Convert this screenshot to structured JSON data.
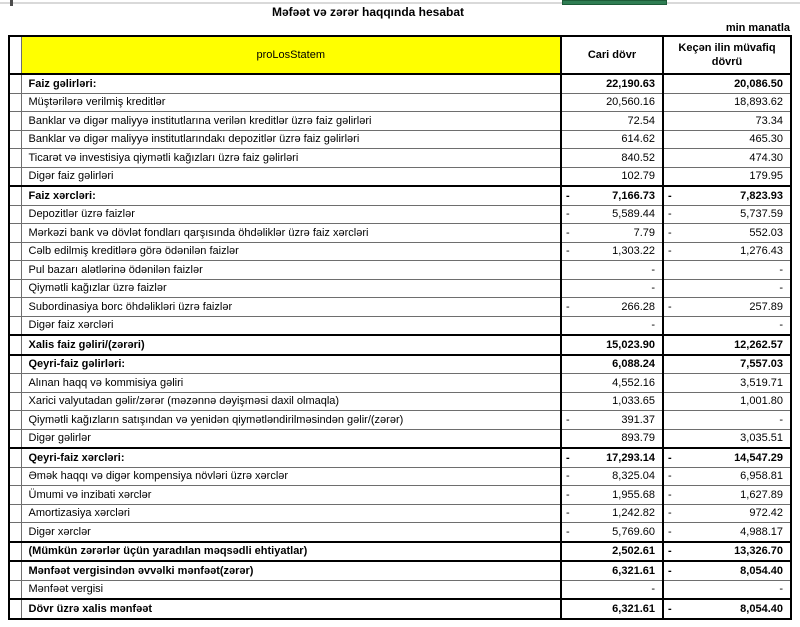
{
  "page": {
    "title": "Məfəət və zərər haqqında hesabat",
    "unit_note": "min manatla"
  },
  "colors": {
    "header_highlight": "#ffff00",
    "top_accent_green": "#2f7d53"
  },
  "table": {
    "header": {
      "name_col": "proLosStatem",
      "col1": "Cari dövr",
      "col2": "Keçən ilin müvafiq dövrü"
    },
    "rows": [
      {
        "label": "Faiz gəlirləri:",
        "bold": true,
        "v1": "22,190.63",
        "n1": false,
        "v2": "20,086.50",
        "n2": false
      },
      {
        "label": "Müştərilərə verilmiş kreditlər",
        "bold": false,
        "v1": "20,560.16",
        "n1": false,
        "v2": "18,893.62",
        "n2": false
      },
      {
        "label": "Banklar və digər maliyyə institutlarına verilən kreditlər üzrə faiz gəlirləri",
        "bold": false,
        "v1": "72.54",
        "n1": false,
        "v2": "73.34",
        "n2": false
      },
      {
        "label": "Banklar və digər maliyyə institutlarındakı depozitlər üzrə faiz gəlirləri",
        "bold": false,
        "v1": "614.62",
        "n1": false,
        "v2": "465.30",
        "n2": false
      },
      {
        "label": "Ticarət və investisiya qiymətli kağızları üzrə faiz gəlirləri",
        "bold": false,
        "v1": "840.52",
        "n1": false,
        "v2": "474.30",
        "n2": false
      },
      {
        "label": "Digər faiz gəlirləri",
        "bold": false,
        "v1": "102.79",
        "n1": false,
        "v2": "179.95",
        "n2": false
      },
      {
        "label": "Faiz xərcləri:",
        "bold": true,
        "v1": "7,166.73",
        "n1": true,
        "v2": "7,823.93",
        "n2": true
      },
      {
        "label": "Depozitlər üzrə faizlər",
        "bold": false,
        "v1": "5,589.44",
        "n1": true,
        "v2": "5,737.59",
        "n2": true
      },
      {
        "label": "Mərkəzi bank və dövlət fondları qarşısında öhdəliklər üzrə faiz xərcləri",
        "bold": false,
        "v1": "7.79",
        "n1": true,
        "v2": "552.03",
        "n2": true
      },
      {
        "label": "Cəlb edilmiş kreditlərə görə ödənilən faizlər",
        "bold": false,
        "v1": "1,303.22",
        "n1": true,
        "v2": "1,276.43",
        "n2": true
      },
      {
        "label": "Pul bazarı alətlərinə ödənilən faizlər",
        "bold": false,
        "v1": "-",
        "n1": false,
        "v2": "-",
        "n2": false
      },
      {
        "label": "Qiymətli kağızlar üzrə faizlər",
        "bold": false,
        "v1": "-",
        "n1": false,
        "v2": "-",
        "n2": false
      },
      {
        "label": "Subordinasiya borc öhdəlikləri üzrə faizlər",
        "bold": false,
        "v1": "266.28",
        "n1": true,
        "v2": "257.89",
        "n2": true
      },
      {
        "label": "Digər faiz xərcləri",
        "bold": false,
        "v1": "-",
        "n1": false,
        "v2": "-",
        "n2": false
      },
      {
        "label": "Xalis faiz gəliri/(zərəri)",
        "bold": true,
        "v1": "15,023.90",
        "n1": false,
        "v2": "12,262.57",
        "n2": false
      },
      {
        "label": "Qeyri-faiz gəlirləri:",
        "bold": true,
        "v1": "6,088.24",
        "n1": false,
        "v2": "7,557.03",
        "n2": false
      },
      {
        "label": "Alınan haqq və kommisiya gəliri",
        "bold": false,
        "v1": "4,552.16",
        "n1": false,
        "v2": "3,519.71",
        "n2": false
      },
      {
        "label": "Xarici valyutadan gəlir/zərər (məzənnə dəyişməsi daxil olmaqla)",
        "bold": false,
        "v1": "1,033.65",
        "n1": false,
        "v2": "1,001.80",
        "n2": false
      },
      {
        "label": "Qiymətli kağızların satışından və yenidən qiymətləndirilməsindən gəlir/(zərər)",
        "bold": false,
        "v1": "391.37",
        "n1": true,
        "v2": "-",
        "n2": false
      },
      {
        "label": "Digər gəlirlər",
        "bold": false,
        "v1": "893.79",
        "n1": false,
        "v2": "3,035.51",
        "n2": false
      },
      {
        "label": "Qeyri-faiz xərcləri:",
        "bold": true,
        "v1": "17,293.14",
        "n1": true,
        "v2": "14,547.29",
        "n2": true
      },
      {
        "label": "Əmək haqqı və digər kompensiya növləri üzrə xərclər",
        "bold": false,
        "v1": "8,325.04",
        "n1": true,
        "v2": "6,958.81",
        "n2": true
      },
      {
        "label": "Ümumi və inzibati xərclər",
        "bold": false,
        "v1": "1,955.68",
        "n1": true,
        "v2": "1,627.89",
        "n2": true
      },
      {
        "label": "Amortizasiya xərcləri",
        "bold": false,
        "v1": "1,242.82",
        "n1": true,
        "v2": "972.42",
        "n2": true
      },
      {
        "label": "Digər xərclər",
        "bold": false,
        "v1": "5,769.60",
        "n1": true,
        "v2": "4,988.17",
        "n2": true
      },
      {
        "label": "(Mümkün zərərlər üçün yaradılan məqsədli ehtiyatlar)",
        "bold": true,
        "v1": "2,502.61",
        "n1": false,
        "v2": "13,326.70",
        "n2": true
      },
      {
        "label": "Mənfəət vergisindən əvvəlki mənfəət(zərər)",
        "bold": true,
        "v1": "6,321.61",
        "n1": false,
        "v2": "8,054.40",
        "n2": true
      },
      {
        "label": "Mənfəət vergisi",
        "bold": false,
        "v1": "-",
        "n1": false,
        "v2": "-",
        "n2": false
      },
      {
        "label": "Dövr üzrə xalis mənfəət",
        "bold": true,
        "v1": "6,321.61",
        "n1": false,
        "v2": "8,054.40",
        "n2": true
      }
    ]
  }
}
